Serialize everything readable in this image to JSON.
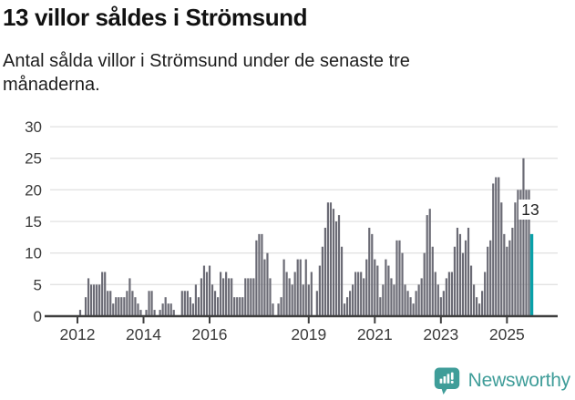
{
  "header": {
    "title": "13 villor såldes i Strömsund",
    "subtitle": "Antal sålda villor i Strömsund under de senaste tre månaderna."
  },
  "chart_data": {
    "type": "bar",
    "title": "13 villor såldes i Strömsund",
    "subtitle": "Antal sålda villor i Strömsund under de senaste tre månaderna.",
    "x_start_month": "2012-02",
    "x_frequency": "monthly",
    "values": [
      1,
      0,
      3,
      6,
      5,
      5,
      5,
      5,
      7,
      7,
      4,
      4,
      2,
      3,
      3,
      3,
      3,
      4,
      6,
      4,
      3,
      2,
      1,
      0,
      1,
      4,
      4,
      1,
      0,
      1,
      2,
      3,
      2,
      2,
      1,
      0,
      0,
      4,
      4,
      4,
      3,
      2,
      5,
      3,
      6,
      8,
      7,
      8,
      5,
      4,
      3,
      7,
      6,
      7,
      6,
      6,
      3,
      3,
      3,
      3,
      6,
      6,
      6,
      6,
      12,
      13,
      13,
      9,
      10,
      6,
      2,
      0,
      2,
      3,
      9,
      7,
      6,
      5,
      7,
      9,
      9,
      5,
      9,
      5,
      7,
      0,
      4,
      8,
      11,
      14,
      18,
      18,
      17,
      15,
      16,
      11,
      2,
      3,
      4,
      5,
      7,
      7,
      7,
      6,
      9,
      14,
      13,
      9,
      8,
      3,
      5,
      9,
      8,
      6,
      5,
      12,
      12,
      10,
      5,
      4,
      3,
      2,
      4,
      5,
      6,
      10,
      16,
      17,
      11,
      7,
      5,
      3,
      4,
      6,
      7,
      7,
      11,
      14,
      13,
      10,
      12,
      14,
      8,
      5,
      3,
      2,
      4,
      7,
      11,
      12,
      21,
      22,
      22,
      18,
      13,
      11,
      12,
      14,
      18,
      20,
      20,
      25,
      20,
      20,
      13
    ],
    "highlight_last_bar": true,
    "last_value": 13,
    "last_value_label": "13",
    "ylim": [
      0,
      30
    ],
    "y_ticks": [
      0,
      5,
      10,
      15,
      20,
      25,
      30
    ],
    "x_tick_years": [
      2012,
      2014,
      2016,
      2019,
      2021,
      2023,
      2025
    ],
    "grid": true,
    "legend": "none",
    "colors": {
      "bar": "#6b6b75",
      "highlight": "#09a1a9",
      "grid": "#e3e3e3",
      "axis": "#3f3f3f",
      "tick_text": "#3b3b3b",
      "annotation_text": "#222222"
    }
  },
  "footer": {
    "brand": "Newsworthy",
    "brand_color": "#3f9d99"
  }
}
